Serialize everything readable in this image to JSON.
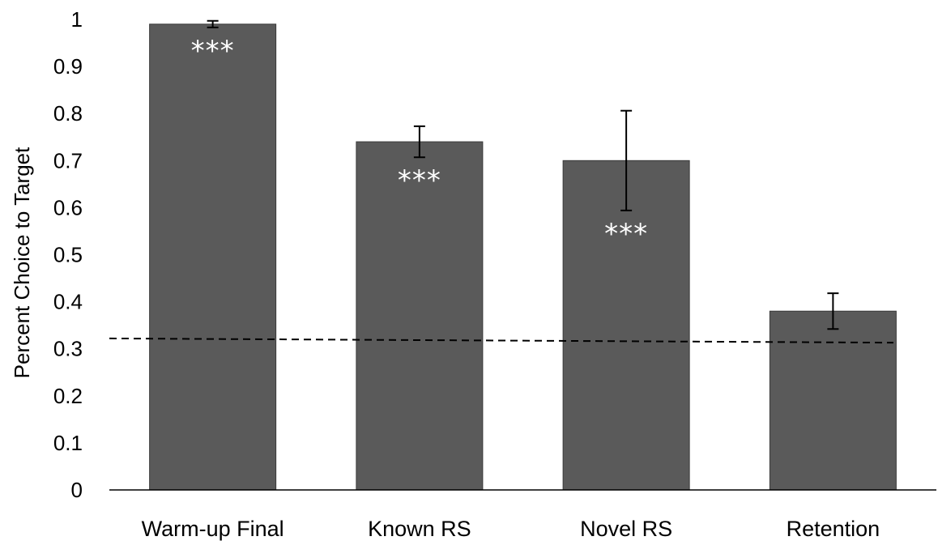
{
  "chart_data": {
    "type": "bar",
    "title": "",
    "xlabel": "",
    "ylabel": "Percent Choice to Target",
    "ylim": [
      0,
      1
    ],
    "yticks": [
      0,
      0.1,
      0.2,
      0.3,
      0.4,
      0.5,
      0.6,
      0.7,
      0.8,
      0.9,
      1
    ],
    "ytick_labels": [
      "0",
      "0.1",
      "0.2",
      "0.3",
      "0.4",
      "0.5",
      "0.6",
      "0.7",
      "0.8",
      "0.9",
      "1"
    ],
    "categories": [
      "Warm-up Final",
      "Known RS",
      "Novel RS",
      "Retention"
    ],
    "values": [
      0.99,
      0.74,
      0.7,
      0.38
    ],
    "error_bars": [
      {
        "low": 0.983,
        "high": 0.997
      },
      {
        "low": 0.707,
        "high": 0.773
      },
      {
        "low": 0.594,
        "high": 0.806
      },
      {
        "low": 0.342,
        "high": 0.418
      }
    ],
    "significance": [
      "***",
      "***",
      "***",
      ""
    ],
    "chance_line": {
      "start": 0.322,
      "end": 0.313,
      "style": "dashed"
    },
    "grid": false,
    "legend": "none",
    "colors": {
      "bar": "#5a5a5a",
      "bar_edge": "#3a3a3a",
      "error_bar": "#000000",
      "chance_line": "#000000",
      "axis": "#000000",
      "significance_text": "#ffffff"
    }
  }
}
